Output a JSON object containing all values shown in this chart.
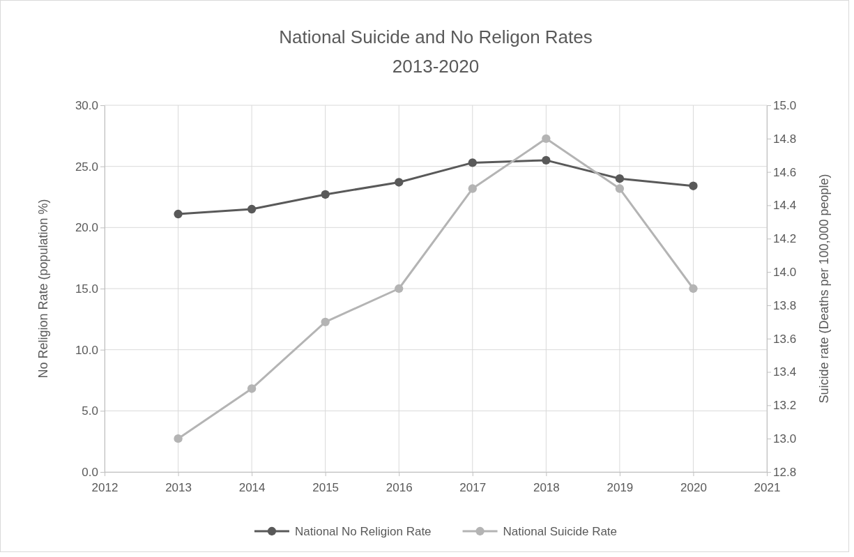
{
  "chart_data": {
    "type": "line",
    "title": "National Suicide and No Religon Rates",
    "subtitle": "2013-2020",
    "ylabel": "No Religion Rate (population %)",
    "y2label": "Suicide rate (Deaths per 100,000 people)",
    "x": [
      2013,
      2014,
      2015,
      2016,
      2017,
      2018,
      2019,
      2020
    ],
    "xlim": [
      2012,
      2021
    ],
    "xticks": [
      2012,
      2013,
      2014,
      2015,
      2016,
      2017,
      2018,
      2019,
      2020,
      2021
    ],
    "ylim": [
      0,
      30
    ],
    "yticks": [
      {
        "value": 0,
        "label": "0.0"
      },
      {
        "value": 5,
        "label": "5.0"
      },
      {
        "value": 10,
        "label": "10.0"
      },
      {
        "value": 15,
        "label": "15.0"
      },
      {
        "value": 20,
        "label": "20.0"
      },
      {
        "value": 25,
        "label": "25.0"
      },
      {
        "value": 30,
        "label": "30.0"
      }
    ],
    "y2lim": [
      12.8,
      15
    ],
    "y2ticks": [
      12.8,
      {
        "value": 13,
        "label": "13.0"
      },
      13.2,
      13.4,
      13.6,
      13.8,
      {
        "value": 14,
        "label": "14.0"
      },
      14.2,
      14.4,
      14.6,
      14.8,
      {
        "value": 15,
        "label": "15.0"
      }
    ],
    "series": [
      {
        "name": "National No Religion Rate",
        "color": "#595959",
        "values": [
          21.1,
          21.5,
          22.7,
          23.7,
          25.3,
          25.5,
          24.0,
          23.4
        ]
      },
      {
        "name": "National Suicide Rate",
        "color": "#b4b4b4",
        "axis": "y2",
        "values": [
          13.0,
          13.3,
          13.7,
          13.9,
          14.5,
          14.8,
          14.5,
          13.9
        ]
      }
    ],
    "grid": true,
    "legend": "bottom",
    "marker": "circle",
    "line_style": "solid"
  }
}
